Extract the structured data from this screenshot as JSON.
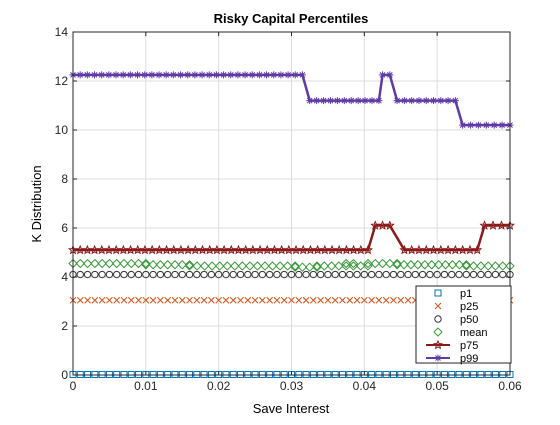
{
  "chart_data": {
    "type": "line",
    "title": "Risky Capital Percentiles",
    "xlabel": "Save Interest",
    "ylabel": "K Distribution",
    "xlim": [
      0,
      0.06
    ],
    "ylim": [
      0,
      14
    ],
    "xticks": [
      0,
      0.01,
      0.02,
      0.03,
      0.04,
      0.05,
      0.06
    ],
    "xtick_labels": [
      "0",
      "0.01",
      "0.02",
      "0.03",
      "0.04",
      "0.05",
      "0.06"
    ],
    "yticks": [
      0,
      2,
      4,
      6,
      8,
      10,
      12,
      14
    ],
    "ytick_labels": [
      "0",
      "2",
      "4",
      "6",
      "8",
      "10",
      "12",
      "14"
    ],
    "grid": true,
    "legend_position": "bottom-right",
    "series": [
      {
        "name": "p1",
        "color": "#0072bd",
        "marker": "square",
        "line": false,
        "segments": [
          [
            0,
            0.06,
            0.02
          ]
        ]
      },
      {
        "name": "p25",
        "color": "#d95319",
        "marker": "x",
        "line": false,
        "segments": [
          [
            0,
            0.06,
            3.05
          ]
        ]
      },
      {
        "name": "p50",
        "color": "#333333",
        "marker": "circle",
        "line": false,
        "segments": [
          [
            0,
            0.06,
            4.1
          ]
        ]
      },
      {
        "name": "mean",
        "color": "#3a9a3a",
        "marker": "diamond",
        "line": false,
        "segments": [
          [
            0,
            0.01,
            4.55
          ],
          [
            0.01,
            0.016,
            4.5
          ],
          [
            0.016,
            0.0305,
            4.45
          ],
          [
            0.0305,
            0.0335,
            4.4
          ],
          [
            0.0335,
            0.0375,
            4.45
          ],
          [
            0.0375,
            0.0385,
            4.55
          ],
          [
            0.0385,
            0.0405,
            4.45
          ],
          [
            0.0405,
            0.0445,
            4.55
          ],
          [
            0.0445,
            0.054,
            4.5
          ],
          [
            0.054,
            0.06,
            4.45
          ]
        ]
      },
      {
        "name": "p75",
        "color": "#8b1a1a",
        "marker": "star",
        "line": true,
        "segments": [
          [
            0,
            0.0405,
            5.1
          ],
          [
            0.0415,
            0.0435,
            6.1
          ],
          [
            0.0455,
            0.0555,
            5.1
          ],
          [
            0.0565,
            0.06,
            6.1
          ]
        ]
      },
      {
        "name": "p99",
        "color": "#5e3ba6",
        "marker": "asterisk",
        "line": true,
        "segments": [
          [
            0,
            0.0315,
            12.25
          ],
          [
            0.0325,
            0.042,
            11.2
          ],
          [
            0.0425,
            0.0435,
            12.25
          ],
          [
            0.0445,
            0.0525,
            11.2
          ],
          [
            0.0535,
            0.06,
            10.2
          ]
        ]
      }
    ]
  }
}
